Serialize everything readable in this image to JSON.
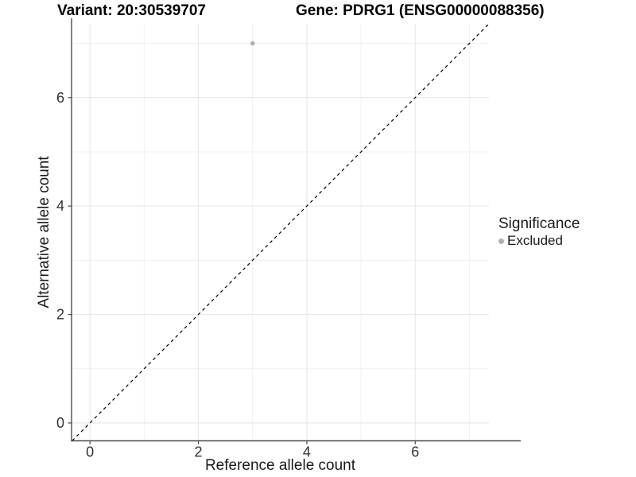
{
  "chart_data": {
    "type": "scatter",
    "title_left": "Variant: 20:30539707",
    "title_right": "Gene: PDRG1 (ENSG00000088356)",
    "xlabel": "Reference allele count",
    "ylabel": "Alternative allele count",
    "x_ticks": [
      0,
      2,
      4,
      6
    ],
    "y_ticks": [
      0,
      2,
      4,
      6
    ],
    "x_minor": [
      1,
      3,
      5,
      7
    ],
    "y_minor": [
      1,
      3,
      5,
      7
    ],
    "xlim": [
      -0.34,
      7.36
    ],
    "ylim": [
      -0.33,
      7.36
    ],
    "grid": true,
    "identity_line": {
      "type": "dashed",
      "from": [
        -0.33,
        -0.33
      ],
      "to": [
        7.36,
        7.36
      ]
    },
    "points": [
      {
        "x": 3,
        "y": 7,
        "significance": "Excluded"
      }
    ],
    "legend": {
      "position": "right",
      "title": "Significance",
      "items": [
        {
          "label": "Excluded",
          "color": "#b0b0b0"
        }
      ]
    },
    "colors": {
      "point": "#b0b0b0",
      "grid_major": "#e6e6e6",
      "grid_minor": "#f1f1f1",
      "axis_line": "#4a4a4a",
      "tick_label": "#333333",
      "identity_line": "#000000",
      "background": "#ffffff"
    }
  }
}
